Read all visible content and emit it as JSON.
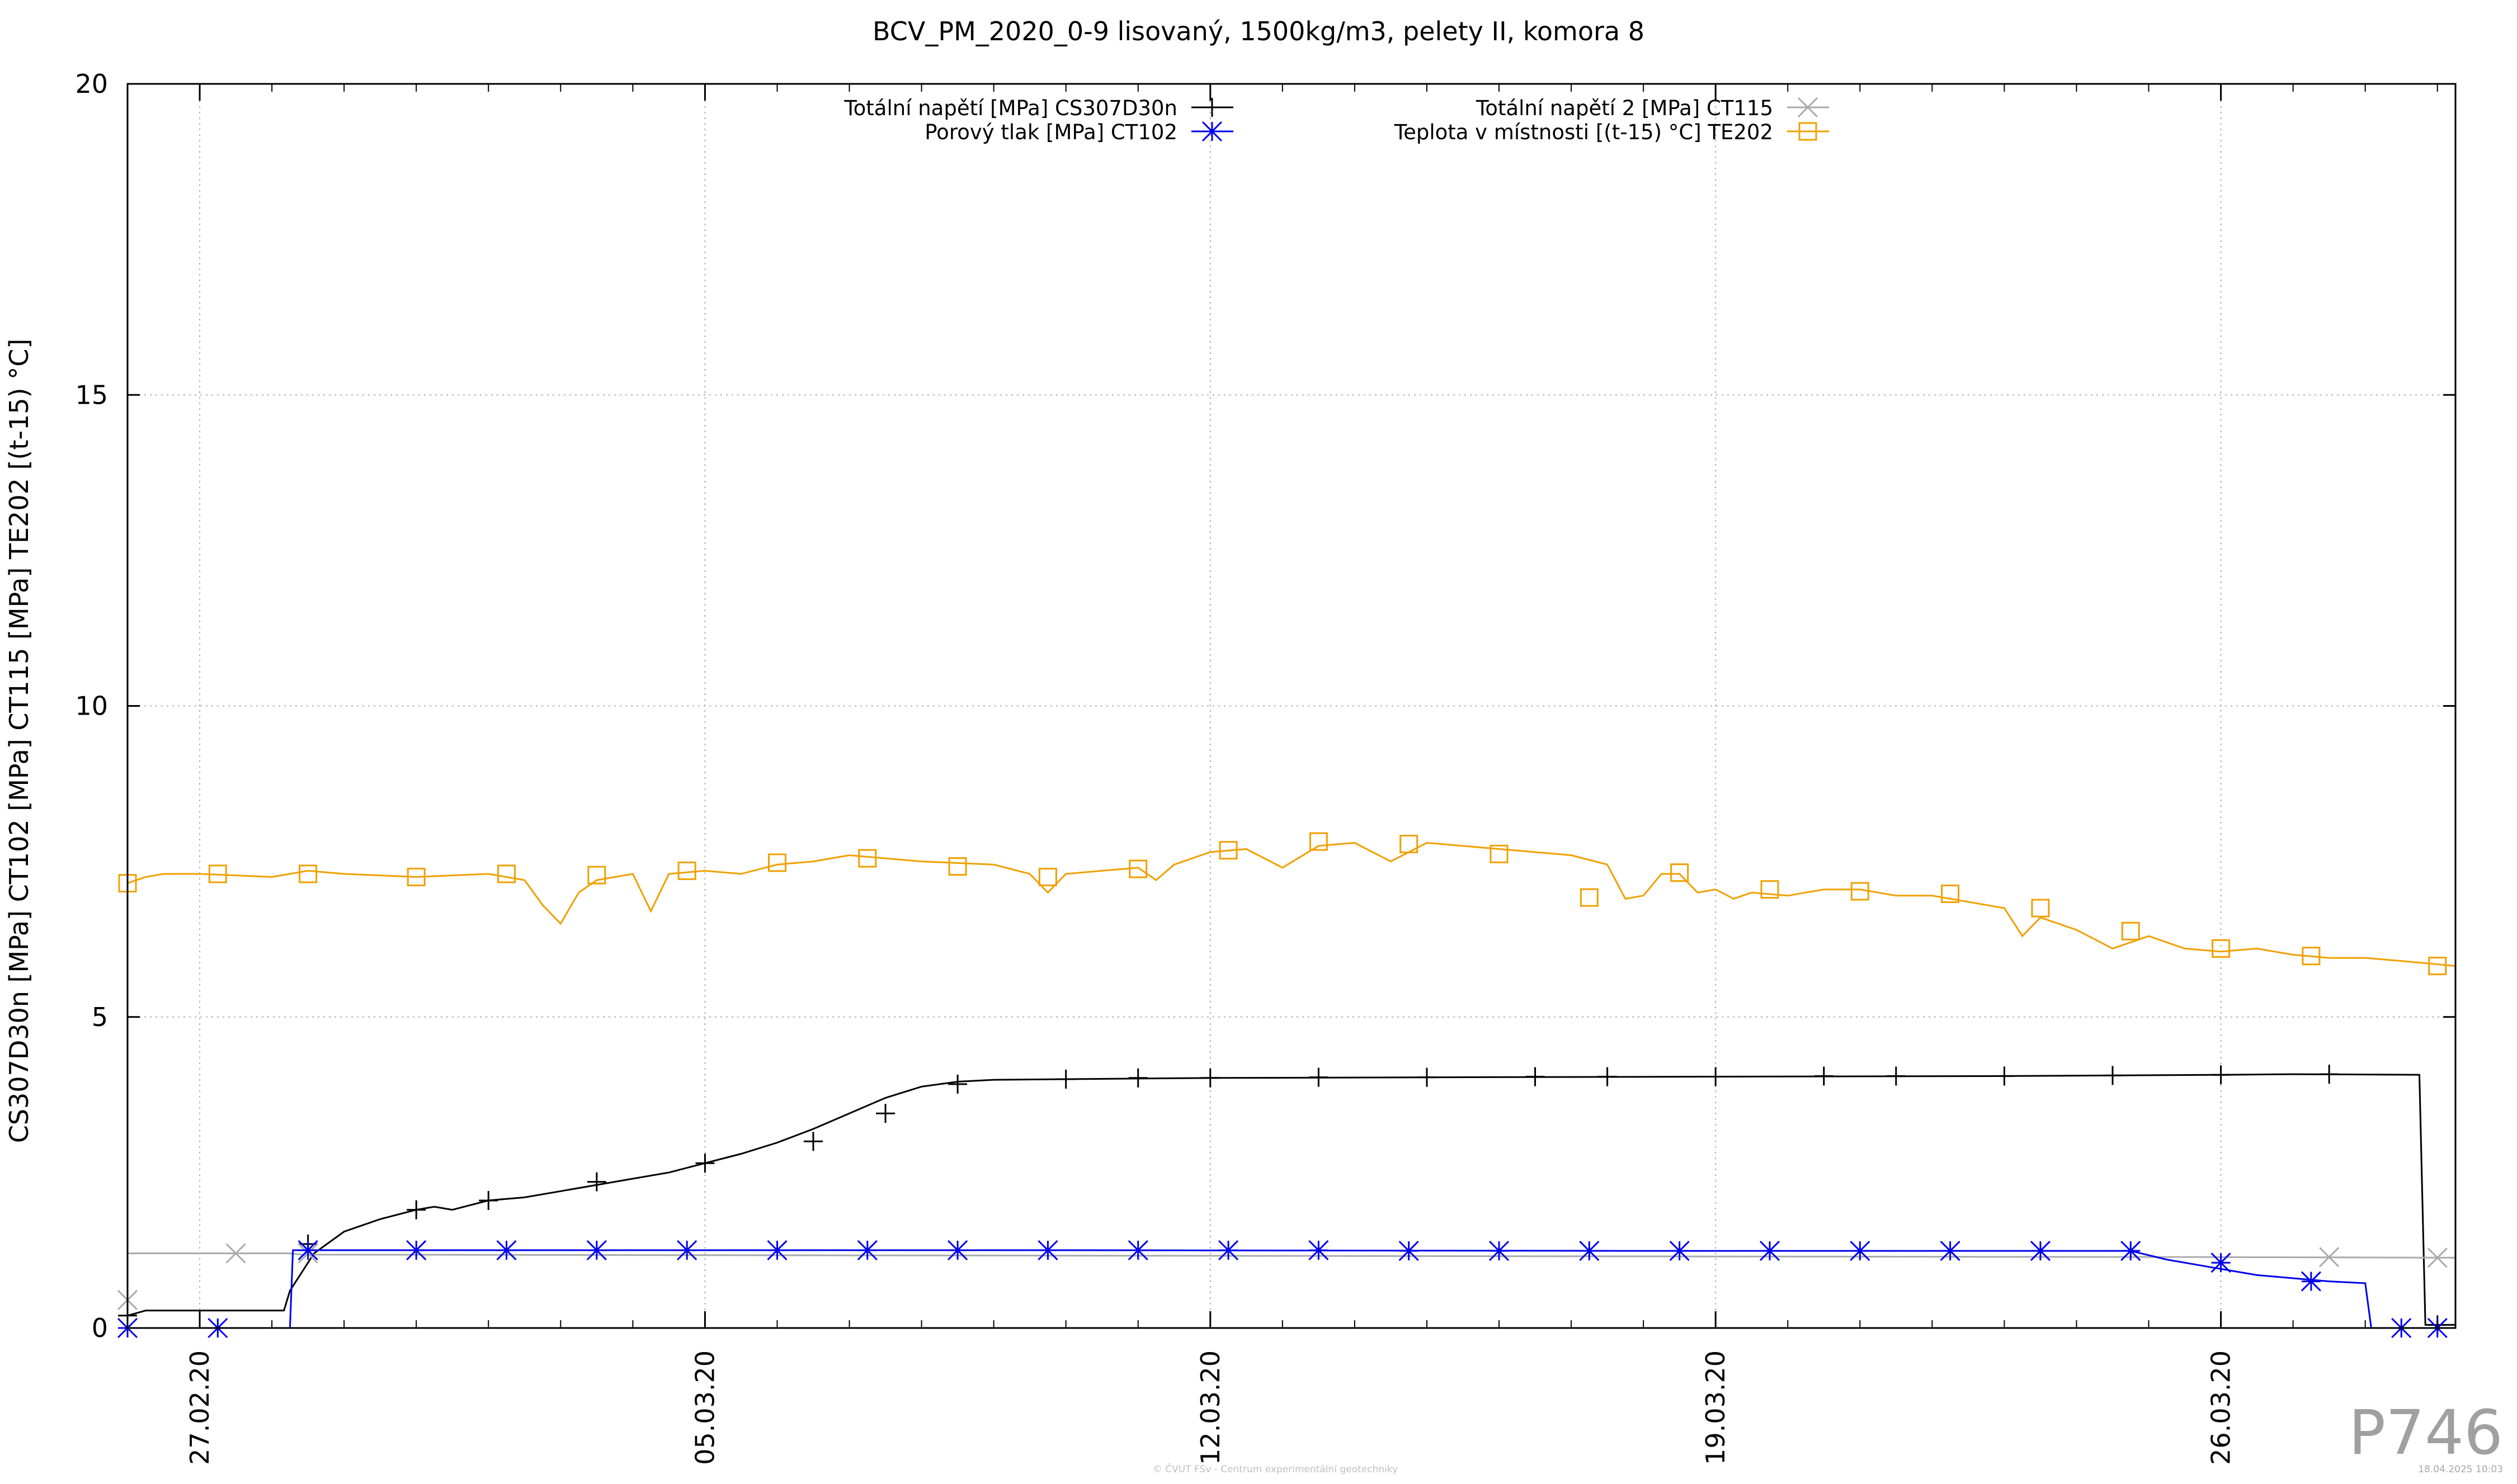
{
  "chart_data": {
    "type": "line",
    "title": "BCV_PM_2020_0-9 lisovaný, 1500kg/m3, pelety II, komora 8",
    "ylabel": "CS307D30n [MPa] CT102 [MPa] CT115 [MPa] TE202 [(t-15) °C]",
    "xlabel": "",
    "ylim": [
      0,
      20
    ],
    "yticks": [
      0,
      5,
      10,
      15,
      20
    ],
    "xlim": [
      "2020-02-26 00:00",
      "2020-03-29 06:00"
    ],
    "xticks": [
      {
        "x": "2020-02-27",
        "label": "27.02.20"
      },
      {
        "x": "2020-03-05",
        "label": "05.03.20"
      },
      {
        "x": "2020-03-12",
        "label": "12.03.20"
      },
      {
        "x": "2020-03-19",
        "label": "19.03.20"
      },
      {
        "x": "2020-03-26",
        "label": "26.03.20"
      }
    ],
    "grid": true,
    "legend_position": "top",
    "series": [
      {
        "name": "Totální napětí [MPa] CS307D30n",
        "color": "#000000",
        "marker": "plus",
        "points": [
          [
            "2020-02-26 00:00",
            0.2
          ],
          [
            "2020-02-26 06:00",
            0.28
          ],
          [
            "2020-02-27 12:00",
            0.28
          ],
          [
            "2020-02-28 00:00",
            0.28
          ],
          [
            "2020-02-28 04:00",
            0.28
          ],
          [
            "2020-02-28 06:00",
            0.6
          ],
          [
            "2020-02-28 14:00",
            1.2
          ],
          [
            "2020-02-29 00:00",
            1.55
          ],
          [
            "2020-02-29 12:00",
            1.75
          ],
          [
            "2020-03-01 00:00",
            1.9
          ],
          [
            "2020-03-01 06:00",
            1.95
          ],
          [
            "2020-03-01 12:00",
            1.9
          ],
          [
            "2020-03-02 00:00",
            2.05
          ],
          [
            "2020-03-02 12:00",
            2.1
          ],
          [
            "2020-03-03 00:00",
            2.2
          ],
          [
            "2020-03-03 12:00",
            2.3
          ],
          [
            "2020-03-04 00:00",
            2.4
          ],
          [
            "2020-03-04 12:00",
            2.5
          ],
          [
            "2020-03-05 00:00",
            2.65
          ],
          [
            "2020-03-05 12:00",
            2.8
          ],
          [
            "2020-03-06 00:00",
            2.98
          ],
          [
            "2020-03-06 12:00",
            3.2
          ],
          [
            "2020-03-07 00:00",
            3.45
          ],
          [
            "2020-03-07 12:00",
            3.7
          ],
          [
            "2020-03-08 00:00",
            3.88
          ],
          [
            "2020-03-08 12:00",
            3.96
          ],
          [
            "2020-03-09 00:00",
            3.99
          ],
          [
            "2020-03-10 00:00",
            4.0
          ],
          [
            "2020-03-12 00:00",
            4.02
          ],
          [
            "2020-03-15 00:00",
            4.03
          ],
          [
            "2020-03-19 00:00",
            4.04
          ],
          [
            "2020-03-23 00:00",
            4.05
          ],
          [
            "2020-03-26 00:00",
            4.07
          ],
          [
            "2020-03-27 00:00",
            4.08
          ],
          [
            "2020-03-28 18:00",
            4.07
          ],
          [
            "2020-03-28 20:00",
            0.05
          ],
          [
            "2020-03-29 06:00",
            0.05
          ]
        ],
        "marker_points": [
          [
            "2020-02-26 00:00",
            0.2
          ],
          [
            "2020-02-28 12:00",
            1.35
          ],
          [
            "2020-03-01 00:00",
            1.9
          ],
          [
            "2020-03-02 00:00",
            2.05
          ],
          [
            "2020-03-03 12:00",
            2.35
          ],
          [
            "2020-03-05 00:00",
            2.65
          ],
          [
            "2020-03-06 12:00",
            3.0
          ],
          [
            "2020-03-07 12:00",
            3.45
          ],
          [
            "2020-03-08 12:00",
            3.92
          ],
          [
            "2020-03-10 00:00",
            4.0
          ],
          [
            "2020-03-11 00:00",
            4.02
          ],
          [
            "2020-03-12 00:00",
            4.02
          ],
          [
            "2020-03-13 12:00",
            4.03
          ],
          [
            "2020-03-15 00:00",
            4.03
          ],
          [
            "2020-03-16 12:00",
            4.04
          ],
          [
            "2020-03-17 12:00",
            4.04
          ],
          [
            "2020-03-19 00:00",
            4.04
          ],
          [
            "2020-03-20 12:00",
            4.05
          ],
          [
            "2020-03-21 12:00",
            4.05
          ],
          [
            "2020-03-23 00:00",
            4.05
          ],
          [
            "2020-03-24 12:00",
            4.06
          ],
          [
            "2020-03-26 00:00",
            4.07
          ],
          [
            "2020-03-27 12:00",
            4.08
          ],
          [
            "2020-03-29 00:00",
            0.05
          ]
        ]
      },
      {
        "name": "Totální napětí 2 [MPa] CT115",
        "color": "#aaaaaa",
        "marker": "cross",
        "points": [
          [
            "2020-02-26 00:00",
            1.2
          ],
          [
            "2020-02-27 00:00",
            1.2
          ],
          [
            "2020-02-28 06:00",
            1.2
          ],
          [
            "2020-02-28 10:00",
            1.18
          ],
          [
            "2020-03-05 00:00",
            1.17
          ],
          [
            "2020-03-12 00:00",
            1.16
          ],
          [
            "2020-03-19 00:00",
            1.15
          ],
          [
            "2020-03-26 00:00",
            1.14
          ],
          [
            "2020-03-29 06:00",
            1.13
          ]
        ],
        "marker_points": [
          [
            "2020-02-26 00:00",
            0.45
          ],
          [
            "2020-02-27 12:00",
            1.2
          ],
          [
            "2020-02-28 12:00",
            1.2
          ],
          [
            "2020-03-27 12:00",
            1.14
          ],
          [
            "2020-03-29 00:00",
            1.13
          ]
        ]
      },
      {
        "name": "Porový tlak [MPa] CT102",
        "color": "#0000ee",
        "marker": "star",
        "points": [
          [
            "2020-02-26 00:00",
            0.0
          ],
          [
            "2020-02-28 06:00",
            0.0
          ],
          [
            "2020-02-28 07:00",
            1.25
          ],
          [
            "2020-03-10 00:00",
            1.25
          ],
          [
            "2020-03-18 00:00",
            1.24
          ],
          [
            "2020-03-24 18:00",
            1.24
          ],
          [
            "2020-03-25 06:00",
            1.1
          ],
          [
            "2020-03-25 18:00",
            1.0
          ],
          [
            "2020-03-26 12:00",
            0.85
          ],
          [
            "2020-03-27 12:00",
            0.75
          ],
          [
            "2020-03-28 00:00",
            0.72
          ],
          [
            "2020-03-28 02:00",
            0.0
          ],
          [
            "2020-03-29 06:00",
            0.0
          ]
        ],
        "marker_points": [
          [
            "2020-02-26 00:00",
            0.0
          ],
          [
            "2020-02-27 06:00",
            0.0
          ],
          [
            "2020-02-28 12:00",
            1.25
          ],
          [
            "2020-03-01 00:00",
            1.25
          ],
          [
            "2020-03-02 06:00",
            1.25
          ],
          [
            "2020-03-03 12:00",
            1.25
          ],
          [
            "2020-03-04 18:00",
            1.25
          ],
          [
            "2020-03-06 00:00",
            1.25
          ],
          [
            "2020-03-07 06:00",
            1.25
          ],
          [
            "2020-03-08 12:00",
            1.25
          ],
          [
            "2020-03-09 18:00",
            1.25
          ],
          [
            "2020-03-11 00:00",
            1.25
          ],
          [
            "2020-03-12 06:00",
            1.25
          ],
          [
            "2020-03-13 12:00",
            1.25
          ],
          [
            "2020-03-14 18:00",
            1.24
          ],
          [
            "2020-03-16 00:00",
            1.24
          ],
          [
            "2020-03-17 06:00",
            1.24
          ],
          [
            "2020-03-18 12:00",
            1.24
          ],
          [
            "2020-03-19 18:00",
            1.24
          ],
          [
            "2020-03-21 00:00",
            1.24
          ],
          [
            "2020-03-22 06:00",
            1.24
          ],
          [
            "2020-03-23 12:00",
            1.24
          ],
          [
            "2020-03-24 18:00",
            1.24
          ],
          [
            "2020-03-26 00:00",
            1.05
          ],
          [
            "2020-03-27 06:00",
            0.75
          ],
          [
            "2020-03-28 12:00",
            0.0
          ],
          [
            "2020-03-29 00:00",
            0.0
          ]
        ]
      },
      {
        "name": "Teplota v místnosti [(t-15) °C] TE202",
        "color": "#f0a000",
        "marker": "square",
        "points": [
          [
            "2020-02-26 00:00",
            7.15
          ],
          [
            "2020-02-26 06:00",
            7.25
          ],
          [
            "2020-02-26 12:00",
            7.3
          ],
          [
            "2020-02-27 00:00",
            7.3
          ],
          [
            "2020-02-28 00:00",
            7.25
          ],
          [
            "2020-02-28 12:00",
            7.35
          ],
          [
            "2020-02-29 00:00",
            7.3
          ],
          [
            "2020-03-01 00:00",
            7.25
          ],
          [
            "2020-03-02 00:00",
            7.3
          ],
          [
            "2020-03-02 12:00",
            7.2
          ],
          [
            "2020-03-02 18:00",
            6.8
          ],
          [
            "2020-03-03 00:00",
            6.5
          ],
          [
            "2020-03-03 06:00",
            7.0
          ],
          [
            "2020-03-03 12:00",
            7.2
          ],
          [
            "2020-03-04 00:00",
            7.3
          ],
          [
            "2020-03-04 06:00",
            6.7
          ],
          [
            "2020-03-04 12:00",
            7.3
          ],
          [
            "2020-03-05 00:00",
            7.35
          ],
          [
            "2020-03-05 12:00",
            7.3
          ],
          [
            "2020-03-06 00:00",
            7.45
          ],
          [
            "2020-03-06 12:00",
            7.5
          ],
          [
            "2020-03-07 00:00",
            7.6
          ],
          [
            "2020-03-08 00:00",
            7.5
          ],
          [
            "2020-03-09 00:00",
            7.45
          ],
          [
            "2020-03-09 12:00",
            7.3
          ],
          [
            "2020-03-09 18:00",
            7.0
          ],
          [
            "2020-03-10 00:00",
            7.3
          ],
          [
            "2020-03-10 12:00",
            7.35
          ],
          [
            "2020-03-11 00:00",
            7.4
          ],
          [
            "2020-03-11 06:00",
            7.2
          ],
          [
            "2020-03-11 12:00",
            7.45
          ],
          [
            "2020-03-12 00:00",
            7.65
          ],
          [
            "2020-03-12 12:00",
            7.7
          ],
          [
            "2020-03-13 00:00",
            7.4
          ],
          [
            "2020-03-13 12:00",
            7.75
          ],
          [
            "2020-03-14 00:00",
            7.8
          ],
          [
            "2020-03-14 12:00",
            7.5
          ],
          [
            "2020-03-15 00:00",
            7.8
          ],
          [
            "2020-03-16 00:00",
            7.7
          ],
          [
            "2020-03-17 00:00",
            7.6
          ],
          [
            "2020-03-17 12:00",
            7.45
          ],
          [
            "2020-03-17 18:00",
            6.9
          ],
          [
            "2020-03-18 00:00",
            6.95
          ],
          [
            "2020-03-18 06:00",
            7.3
          ],
          [
            "2020-03-18 12:00",
            7.3
          ],
          [
            "2020-03-18 18:00",
            7.0
          ],
          [
            "2020-03-19 00:00",
            7.05
          ],
          [
            "2020-03-19 06:00",
            6.9
          ],
          [
            "2020-03-19 12:00",
            7.0
          ],
          [
            "2020-03-20 00:00",
            6.95
          ],
          [
            "2020-03-20 12:00",
            7.05
          ],
          [
            "2020-03-21 00:00",
            7.05
          ],
          [
            "2020-03-21 12:00",
            6.95
          ],
          [
            "2020-03-22 00:00",
            6.95
          ],
          [
            "2020-03-23 00:00",
            6.75
          ],
          [
            "2020-03-23 06:00",
            6.3
          ],
          [
            "2020-03-23 12:00",
            6.6
          ],
          [
            "2020-03-24 00:00",
            6.4
          ],
          [
            "2020-03-24 12:00",
            6.1
          ],
          [
            "2020-03-25 00:00",
            6.3
          ],
          [
            "2020-03-25 12:00",
            6.1
          ],
          [
            "2020-03-26 00:00",
            6.05
          ],
          [
            "2020-03-26 12:00",
            6.1
          ],
          [
            "2020-03-27 00:00",
            6.0
          ],
          [
            "2020-03-27 12:00",
            5.95
          ],
          [
            "2020-03-28 00:00",
            5.95
          ],
          [
            "2020-03-28 12:00",
            5.9
          ],
          [
            "2020-03-29 06:00",
            5.82
          ]
        ],
        "marker_points": [
          [
            "2020-02-26 00:00",
            7.15
          ],
          [
            "2020-02-27 06:00",
            7.3
          ],
          [
            "2020-02-28 12:00",
            7.3
          ],
          [
            "2020-03-01 00:00",
            7.25
          ],
          [
            "2020-03-02 06:00",
            7.3
          ],
          [
            "2020-03-03 12:00",
            7.28
          ],
          [
            "2020-03-04 18:00",
            7.35
          ],
          [
            "2020-03-06 00:00",
            7.48
          ],
          [
            "2020-03-07 06:00",
            7.55
          ],
          [
            "2020-03-08 12:00",
            7.42
          ],
          [
            "2020-03-09 18:00",
            7.25
          ],
          [
            "2020-03-11 00:00",
            7.38
          ],
          [
            "2020-03-12 06:00",
            7.68
          ],
          [
            "2020-03-13 12:00",
            7.82
          ],
          [
            "2020-03-14 18:00",
            7.78
          ],
          [
            "2020-03-16 00:00",
            7.62
          ],
          [
            "2020-03-17 06:00",
            6.92
          ],
          [
            "2020-03-18 12:00",
            7.32
          ],
          [
            "2020-03-19 18:00",
            7.05
          ],
          [
            "2020-03-21 00:00",
            7.02
          ],
          [
            "2020-03-22 06:00",
            6.98
          ],
          [
            "2020-03-23 12:00",
            6.75
          ],
          [
            "2020-03-24 18:00",
            6.38
          ],
          [
            "2020-03-26 00:00",
            6.1
          ],
          [
            "2020-03-27 06:00",
            5.98
          ],
          [
            "2020-03-29 00:00",
            5.82
          ]
        ]
      }
    ]
  },
  "watermark": {
    "id": "P746",
    "footer": "© ČVUT FSv - Centrum experimentální geotechniky",
    "timestamp": "18.04.2025 10:03"
  }
}
